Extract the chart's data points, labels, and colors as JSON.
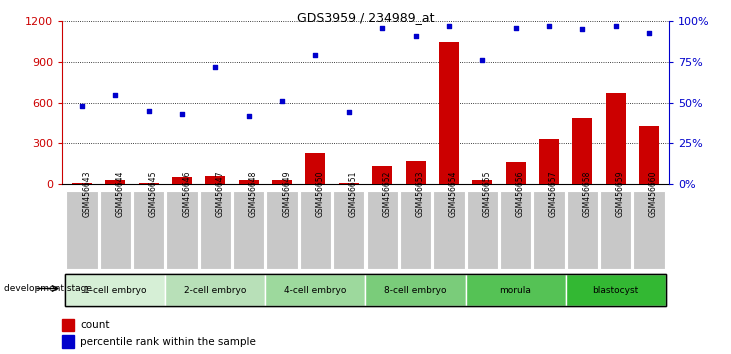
{
  "title": "GDS3959 / 234989_at",
  "samples": [
    "GSM456643",
    "GSM456644",
    "GSM456645",
    "GSM456646",
    "GSM456647",
    "GSM456648",
    "GSM456649",
    "GSM456650",
    "GSM456651",
    "GSM456652",
    "GSM456653",
    "GSM456654",
    "GSM456655",
    "GSM456656",
    "GSM456657",
    "GSM456658",
    "GSM456659",
    "GSM456660"
  ],
  "counts": [
    5,
    30,
    5,
    50,
    60,
    30,
    30,
    230,
    5,
    130,
    170,
    1050,
    30,
    160,
    330,
    490,
    670,
    430
  ],
  "percentile_ranks_pct": [
    48,
    55,
    45,
    43,
    72,
    42,
    51,
    79,
    44,
    96,
    91,
    97,
    76,
    96,
    97,
    95,
    97,
    93
  ],
  "ylim_left": [
    0,
    1200
  ],
  "ylim_right": [
    0,
    100
  ],
  "yticks_left": [
    0,
    300,
    600,
    900,
    1200
  ],
  "yticks_right": [
    0,
    25,
    50,
    75,
    100
  ],
  "yticklabels_left": [
    "0",
    "300",
    "600",
    "900",
    "1200"
  ],
  "yticklabels_right": [
    "0%",
    "25%",
    "50%",
    "75%",
    "100%"
  ],
  "stage_groups": [
    {
      "label": "1-cell embryo",
      "start": 0,
      "end": 2,
      "color": "#d6efd6"
    },
    {
      "label": "2-cell embryo",
      "start": 3,
      "end": 5,
      "color": "#b8e0b8"
    },
    {
      "label": "4-cell embryo",
      "start": 6,
      "end": 8,
      "color": "#9dd99d"
    },
    {
      "label": "8-cell embryo",
      "start": 9,
      "end": 11,
      "color": "#7acc7a"
    },
    {
      "label": "morula",
      "start": 12,
      "end": 14,
      "color": "#55c255"
    },
    {
      "label": "blastocyst",
      "start": 15,
      "end": 17,
      "color": "#33b833"
    }
  ],
  "bar_color": "#cc0000",
  "dot_color": "#0000cc",
  "left_axis_color": "#cc0000",
  "right_axis_color": "#0000cc",
  "tick_label_bg": "#c8c8c8",
  "legend_count_label": "count",
  "legend_pct_label": "percentile rank within the sample",
  "dot_scale": 12.0
}
